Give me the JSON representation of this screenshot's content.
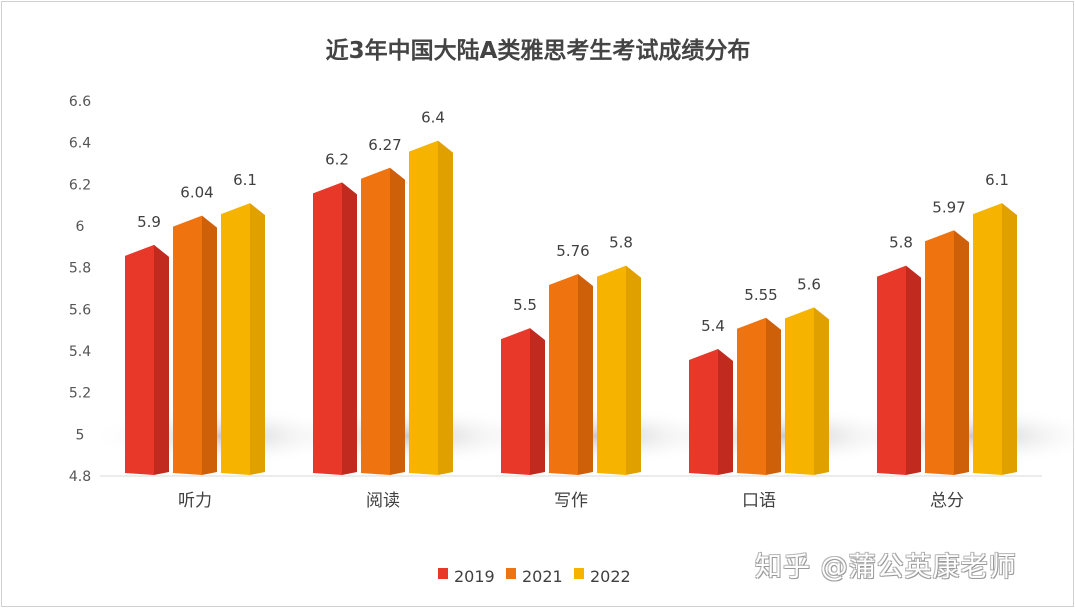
{
  "chart_data": {
    "type": "bar",
    "title": "近3年中国大陆A类雅思考生考试成绩分布",
    "categories": [
      "听力",
      "阅读",
      "写作",
      "口语",
      "总分"
    ],
    "series": [
      {
        "name": "2019",
        "values": [
          5.9,
          6.2,
          5.5,
          5.4,
          5.8
        ],
        "color": "#e8382a",
        "side_color": "#c02a1f"
      },
      {
        "name": "2021",
        "values": [
          6.04,
          6.27,
          5.76,
          5.55,
          5.97
        ],
        "color": "#ef7410",
        "side_color": "#cf600a"
      },
      {
        "name": "2022",
        "values": [
          6.1,
          6.4,
          5.8,
          5.6,
          6.1
        ],
        "color": "#f6b400",
        "side_color": "#e0a000"
      }
    ],
    "ylim": [
      4.8,
      6.6
    ],
    "yticks": [
      "4.8",
      "5",
      "5.2",
      "5.4",
      "5.6",
      "5.8",
      "6",
      "6.2",
      "6.4",
      "6.6"
    ],
    "grid": false,
    "legend": "bottom",
    "xlabel": "",
    "ylabel": ""
  },
  "watermark": "知乎 @蒲公英康老师"
}
